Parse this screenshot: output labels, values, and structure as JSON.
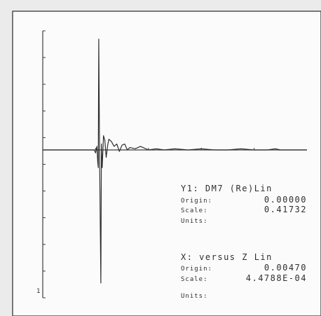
{
  "chart_data": {
    "type": "line",
    "title": "",
    "xlabel": "",
    "ylabel": "",
    "grid": false,
    "legend": "none",
    "y_tick_count": 11,
    "x_tick_count": 4,
    "x_range": [
      0,
      100
    ],
    "y_range": [
      -1,
      1
    ],
    "series": [
      {
        "x": [
          0,
          19.5,
          20,
          20.5,
          20.8,
          21,
          21.2,
          21.5,
          22,
          22.2,
          22.5,
          23,
          23.5,
          24,
          24.5,
          25,
          26,
          27,
          27.5,
          28,
          29,
          30,
          31,
          32,
          33,
          35,
          37,
          40,
          43,
          46,
          50,
          55,
          60,
          65,
          70,
          75,
          80,
          85,
          88,
          90,
          92,
          95,
          100
        ],
        "y": [
          0,
          0,
          -0.02,
          0.03,
          -0.08,
          -0.12,
          0.93,
          -0.05,
          -0.9,
          0.05,
          -0.12,
          0.12,
          0.08,
          -0.05,
          0.03,
          0.09,
          0.07,
          0.03,
          0.04,
          0.05,
          -0.01,
          0.04,
          0.05,
          0.0,
          0.02,
          0.01,
          0.03,
          0.0,
          0.01,
          0.0,
          0.01,
          0.0,
          0.01,
          0.0,
          0.0,
          0.01,
          0.0,
          0.0,
          0.01,
          0.0,
          0.0,
          0.0,
          0.0
        ]
      }
    ]
  },
  "info": {
    "y_name": "Y1: DM7 (Re)Lin",
    "y_origin_label": "Origin:",
    "y_origin_value": "0.00000",
    "y_scale_label": "Scale:",
    "y_scale_value": "0.41732",
    "y_units_label": "Units:",
    "x_name": "X: versus Z Lin",
    "x_origin_label": "Origin:",
    "x_origin_value": "0.00470",
    "x_scale_label": "Scale:",
    "x_scale_value": "4.4788E-04",
    "x_units_label": "Units:"
  },
  "page_marker": "1"
}
